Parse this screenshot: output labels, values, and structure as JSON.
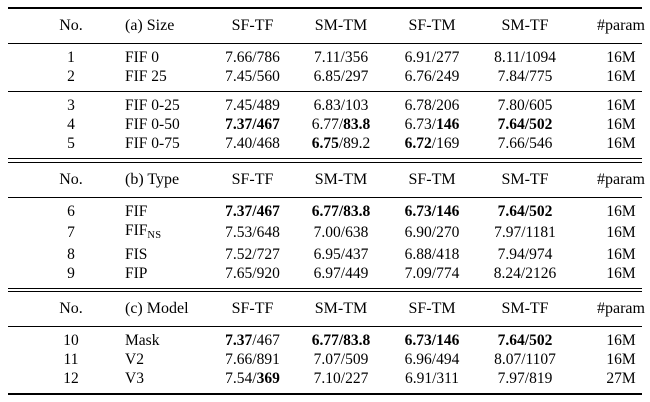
{
  "page": {
    "background": "#ffffff",
    "text_color": "#000000",
    "rule_color": "#000000"
  },
  "table": {
    "sections": [
      {
        "id": "a",
        "title": "(a) Size",
        "columns": [
          "No.",
          "(a) Size",
          "SF-TF",
          "SM-TM",
          "SF-TM",
          "SM-TF",
          "#param"
        ],
        "groups": [
          [
            {
              "no": "1",
              "name": "FIF 0",
              "sub": "",
              "cells": [
                [
                  "7.66",
                  0,
                  "786",
                  0
                ],
                [
                  "7.11",
                  0,
                  "356",
                  0
                ],
                [
                  "6.91",
                  0,
                  "277",
                  0
                ],
                [
                  "8.11",
                  0,
                  "1094",
                  0
                ]
              ],
              "param": "16M"
            },
            {
              "no": "2",
              "name": "FIF 25",
              "sub": "",
              "cells": [
                [
                  "7.45",
                  0,
                  "560",
                  0
                ],
                [
                  "6.85",
                  0,
                  "297",
                  0
                ],
                [
                  "6.76",
                  0,
                  "249",
                  0
                ],
                [
                  "7.84",
                  0,
                  "775",
                  0
                ]
              ],
              "param": "16M"
            }
          ],
          [
            {
              "no": "3",
              "name": "FIF 0-25",
              "sub": "",
              "cells": [
                [
                  "7.45",
                  0,
                  "489",
                  0
                ],
                [
                  "6.83",
                  0,
                  "103",
                  0
                ],
                [
                  "6.78",
                  0,
                  "206",
                  0
                ],
                [
                  "7.80",
                  0,
                  "605",
                  0
                ]
              ],
              "param": "16M"
            },
            {
              "no": "4",
              "name": "FIF 0-50",
              "sub": "",
              "cells": [
                [
                  "7.37",
                  1,
                  "467",
                  1
                ],
                [
                  "6.77",
                  0,
                  "83.8",
                  1
                ],
                [
                  "6.73",
                  0,
                  "146",
                  1
                ],
                [
                  "7.64",
                  1,
                  "502",
                  1
                ]
              ],
              "param": "16M"
            },
            {
              "no": "5",
              "name": "FIF 0-75",
              "sub": "",
              "cells": [
                [
                  "7.40",
                  0,
                  "468",
                  0
                ],
                [
                  "6.75",
                  1,
                  "89.2",
                  0
                ],
                [
                  "6.72",
                  1,
                  "169",
                  0
                ],
                [
                  "7.66",
                  0,
                  "546",
                  0
                ]
              ],
              "param": "16M"
            }
          ]
        ]
      },
      {
        "id": "b",
        "title": "(b) Type",
        "columns": [
          "No.",
          "(b) Type",
          "SF-TF",
          "SM-TM",
          "SF-TM",
          "SM-TF",
          "#param"
        ],
        "groups": [
          [
            {
              "no": "6",
              "name": "FIF",
              "sub": "",
              "cells": [
                [
                  "7.37",
                  1,
                  "467",
                  1
                ],
                [
                  "6.77",
                  1,
                  "83.8",
                  1
                ],
                [
                  "6.73",
                  1,
                  "146",
                  1
                ],
                [
                  "7.64",
                  1,
                  "502",
                  1
                ]
              ],
              "param": "16M"
            },
            {
              "no": "7",
              "name": "FIF",
              "sub": "NS",
              "cells": [
                [
                  "7.53",
                  0,
                  "648",
                  0
                ],
                [
                  "7.00",
                  0,
                  "638",
                  0
                ],
                [
                  "6.90",
                  0,
                  "270",
                  0
                ],
                [
                  "7.97",
                  0,
                  "1181",
                  0
                ]
              ],
              "param": "16M"
            },
            {
              "no": "8",
              "name": "FIS",
              "sub": "",
              "cells": [
                [
                  "7.52",
                  0,
                  "727",
                  0
                ],
                [
                  "6.95",
                  0,
                  "437",
                  0
                ],
                [
                  "6.88",
                  0,
                  "418",
                  0
                ],
                [
                  "7.94",
                  0,
                  "974",
                  0
                ]
              ],
              "param": "16M"
            },
            {
              "no": "9",
              "name": "FIP",
              "sub": "",
              "cells": [
                [
                  "7.65",
                  0,
                  "920",
                  0
                ],
                [
                  "6.97",
                  0,
                  "449",
                  0
                ],
                [
                  "7.09",
                  0,
                  "774",
                  0
                ],
                [
                  "8.24",
                  0,
                  "2126",
                  0
                ]
              ],
              "param": "16M"
            }
          ]
        ]
      },
      {
        "id": "c",
        "title": "(c) Model",
        "columns": [
          "No.",
          "(c) Model",
          "SF-TF",
          "SM-TM",
          "SF-TM",
          "SM-TF",
          "#param"
        ],
        "groups": [
          [
            {
              "no": "10",
              "name": "Mask",
              "sub": "",
              "cells": [
                [
                  "7.37",
                  1,
                  "467",
                  0
                ],
                [
                  "6.77",
                  1,
                  "83.8",
                  1
                ],
                [
                  "6.73",
                  1,
                  "146",
                  1
                ],
                [
                  "7.64",
                  1,
                  "502",
                  1
                ]
              ],
              "param": "16M"
            },
            {
              "no": "11",
              "name": "V2",
              "sub": "",
              "cells": [
                [
                  "7.66",
                  0,
                  "891",
                  0
                ],
                [
                  "7.07",
                  0,
                  "509",
                  0
                ],
                [
                  "6.96",
                  0,
                  "494",
                  0
                ],
                [
                  "8.07",
                  0,
                  "1107",
                  0
                ]
              ],
              "param": "16M"
            },
            {
              "no": "12",
              "name": "V3",
              "sub": "",
              "cells": [
                [
                  "7.54",
                  0,
                  "369",
                  1
                ],
                [
                  "7.10",
                  0,
                  "227",
                  0
                ],
                [
                  "6.91",
                  0,
                  "311",
                  0
                ],
                [
                  "7.97",
                  0,
                  "819",
                  0
                ]
              ],
              "param": "27M"
            }
          ]
        ]
      }
    ]
  }
}
